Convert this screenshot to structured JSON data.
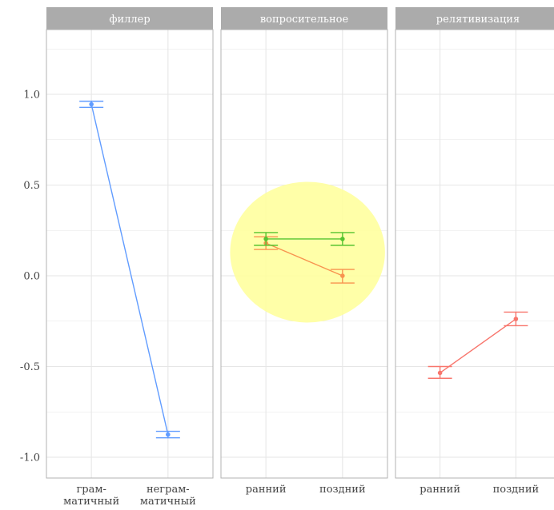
{
  "chart_data": {
    "type": "line",
    "facets": [
      {
        "title": "филлер",
        "categories": [
          [
            "грам-",
            "матичный"
          ],
          [
            "неграм-",
            "матичный"
          ]
        ],
        "series": [
          {
            "color": "#619CFF",
            "values": [
              0.945,
              -0.875
            ],
            "ci_low": [
              0.928,
              -0.893
            ],
            "ci_high": [
              0.962,
              -0.857
            ]
          }
        ]
      },
      {
        "title": "вопросительное",
        "categories": [
          [
            "ранний"
          ],
          [
            "поздний"
          ]
        ],
        "highlight": {
          "color": "#FFFF99"
        },
        "series": [
          {
            "color": "#F8934F",
            "values": [
              0.18,
              0.0
            ],
            "ci_low": [
              0.145,
              -0.04
            ],
            "ci_high": [
              0.215,
              0.035
            ]
          },
          {
            "color": "#56C330",
            "values": [
              0.203,
              0.203
            ],
            "ci_low": [
              0.168,
              0.168
            ],
            "ci_high": [
              0.238,
              0.238
            ]
          }
        ]
      },
      {
        "title": "релятивизация",
        "categories": [
          [
            "ранний"
          ],
          [
            "поздний"
          ]
        ],
        "series": [
          {
            "color": "#F8766D",
            "values": [
              -0.535,
              -0.238
            ],
            "ci_low": [
              -0.565,
              -0.275
            ],
            "ci_high": [
              -0.5,
              -0.2
            ]
          }
        ]
      }
    ],
    "y_ticks": [
      1.0,
      0.5,
      0.0,
      -0.5,
      -1.0
    ],
    "y_tick_labels": [
      "1.0",
      "0.5",
      "0.0",
      "-0.5",
      "-1.0"
    ],
    "ylim": [
      -1.1,
      1.38
    ],
    "grid": true,
    "colors": {
      "strip": "#ABABAB",
      "grid": "#E6E6E6",
      "panel_border": "#B3B3B3",
      "axis_text": "#444444"
    }
  }
}
